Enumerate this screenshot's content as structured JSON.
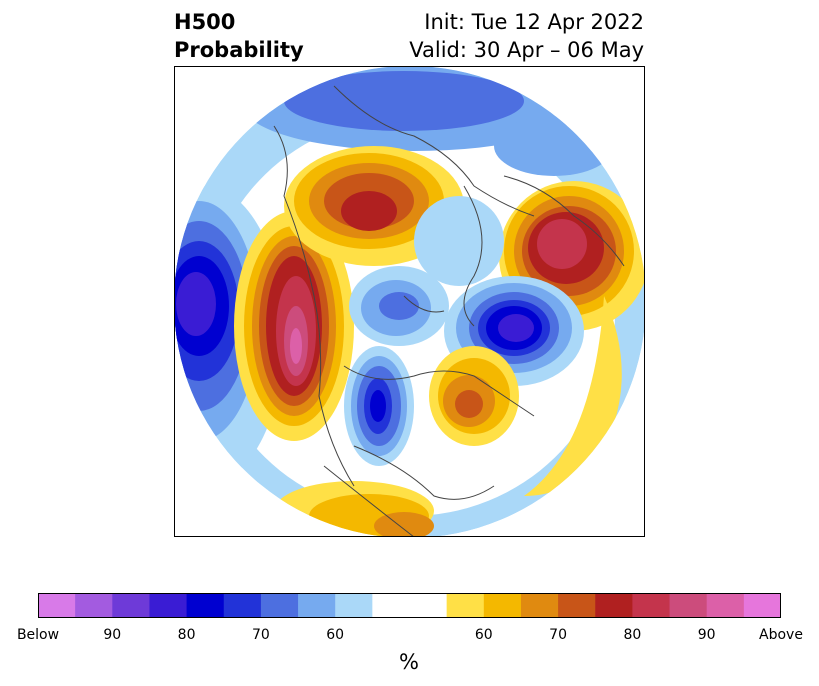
{
  "title": {
    "left_line1": "H500",
    "left_line2": "Probability",
    "right_line1": "Init: Tue 12 Apr 2022",
    "right_line2": "Valid: 30 Apr – 06 May"
  },
  "colorbar": {
    "colors": [
      "#d87ae8",
      "#a35be0",
      "#6e3ad8",
      "#3a1cd4",
      "#0000d0",
      "#2233d8",
      "#4d6fe0",
      "#76aaef",
      "#aad8f8",
      "#ffffff",
      "#ffe046",
      "#f4b800",
      "#e08a10",
      "#c85518",
      "#b02020",
      "#c4344c",
      "#cc4c7c",
      "#dc60a8",
      "#e676dc"
    ],
    "tick_labels": [
      "Below",
      "90",
      "80",
      "70",
      "60",
      "60",
      "70",
      "80",
      "90",
      "Above"
    ],
    "unit_label": "%"
  },
  "palette": {
    "below_deep": "#3a1cd4",
    "below_mid": "#4d6fe0",
    "below_light": "#aad8f8",
    "above_light": "#ffe046",
    "above_mid": "#e08a10",
    "above_deep": "#b02020",
    "above_max": "#cc4c7c"
  }
}
